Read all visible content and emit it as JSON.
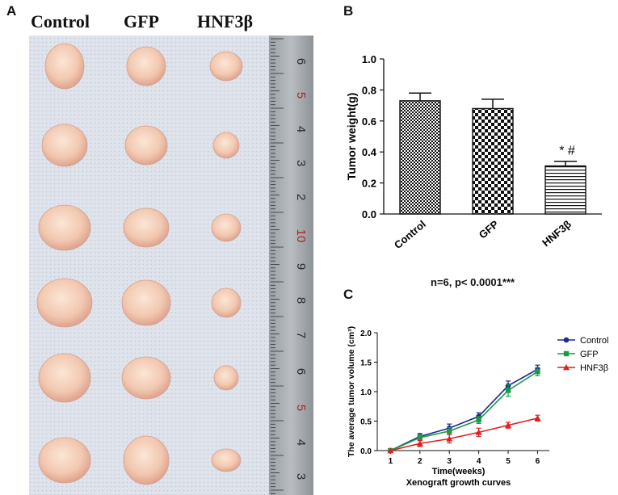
{
  "panels": {
    "a": {
      "letter": "A",
      "columns": [
        "Control",
        "GFP",
        "HNF3β"
      ],
      "ruler_numbers": [
        "6",
        "5",
        "4",
        "3",
        "2",
        "10",
        "9",
        "8",
        "7",
        "6",
        "5",
        "4",
        "3"
      ]
    },
    "b": {
      "letter": "B",
      "note": "n=6, p< 0.0001***"
    },
    "c": {
      "letter": "C",
      "caption": "Xenograft growth curves"
    }
  },
  "chart_data": [
    {
      "type": "bar",
      "title": "",
      "categories": [
        "Control",
        "GFP",
        "HNF3β"
      ],
      "values": [
        0.73,
        0.68,
        0.31
      ],
      "errors": [
        0.05,
        0.06,
        0.03
      ],
      "patterns": [
        "small-check",
        "large-check",
        "horizontal-lines"
      ],
      "annotations": [
        {
          "category": "HNF3β",
          "text": "* #"
        }
      ],
      "xlabel": "",
      "ylabel": "Tumor weight(g)",
      "ylim": [
        0,
        1.0
      ],
      "yticks": [
        "0.0",
        "0.2",
        "0.4",
        "0.6",
        "0.8",
        "1.0"
      ],
      "grid": false
    },
    {
      "type": "line",
      "title": "",
      "x": [
        1,
        2,
        3,
        4,
        5,
        6
      ],
      "xticks": [
        "1",
        "2",
        "3",
        "4",
        "5",
        "6"
      ],
      "series": [
        {
          "name": "Control",
          "color": "#1f2a8a",
          "marker": "circle",
          "values": [
            0.0,
            0.24,
            0.38,
            0.58,
            1.1,
            1.38
          ],
          "errors": [
            0.0,
            0.05,
            0.07,
            0.06,
            0.08,
            0.07
          ]
        },
        {
          "name": "GFP",
          "color": "#1a9a4a",
          "marker": "square",
          "values": [
            0.0,
            0.22,
            0.33,
            0.52,
            1.02,
            1.34
          ],
          "errors": [
            0.0,
            0.05,
            0.06,
            0.06,
            0.1,
            0.07
          ]
        },
        {
          "name": "HNF3β",
          "color": "#e02020",
          "marker": "triangle",
          "values": [
            0.0,
            0.12,
            0.2,
            0.31,
            0.43,
            0.55
          ],
          "errors": [
            0.0,
            0.05,
            0.07,
            0.07,
            0.05,
            0.05
          ]
        }
      ],
      "xlabel": "Time(weeks)",
      "ylabel": "The average tumor volume (cm³)",
      "ylim": [
        0,
        2.0
      ],
      "yticks": [
        "0.0",
        "0.5",
        "1.0",
        "1.5",
        "2.0"
      ],
      "legend": "top-right",
      "grid": false
    }
  ]
}
